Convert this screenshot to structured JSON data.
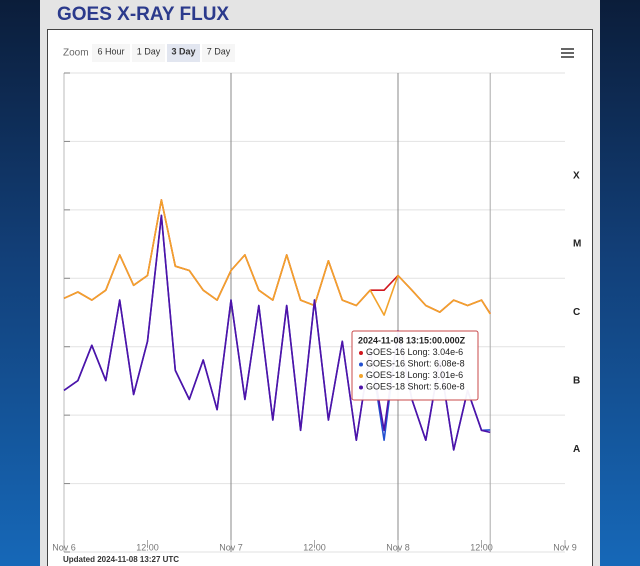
{
  "chart_data": {
    "type": "line",
    "title": "GOES X-RAY FLUX",
    "zoom": {
      "label": "Zoom",
      "buttons": [
        "6 Hour",
        "1 Day",
        "3 Day",
        "7 Day"
      ],
      "selected": 2
    },
    "updated": "Updated 2024-11-08 13:27 UTC",
    "log_y": true,
    "grid": true,
    "xlim": [
      "2024-11-06T00:00Z",
      "2024-11-09T00:00Z"
    ],
    "xticks": [
      {
        "value": "2024-11-06T00:00Z",
        "label": "Nov 6"
      },
      {
        "value": "2024-11-06T12:00Z",
        "label": "12:00"
      },
      {
        "value": "2024-11-07T00:00Z",
        "label": "Nov 7"
      },
      {
        "value": "2024-11-07T12:00Z",
        "label": "12:00"
      },
      {
        "value": "2024-11-08T00:00Z",
        "label": "Nov 8"
      },
      {
        "value": "2024-11-08T12:00Z",
        "label": "12:00"
      },
      {
        "value": "2024-11-09T00:00Z",
        "label": "Nov 9"
      }
    ],
    "xgrid": [
      "2024-11-07T00:00Z",
      "2024-11-08T00:00Z"
    ],
    "ylim": [
      1e-09,
      0.01
    ],
    "yticks": [
      1e-09,
      1e-08,
      1e-07,
      1e-06,
      1e-05,
      0.0001,
      0.001,
      0.01
    ],
    "class_labels": [
      {
        "label": "X",
        "value": 0.0001
      },
      {
        "label": "M",
        "value": 1e-05
      },
      {
        "label": "C",
        "value": 1e-06
      },
      {
        "label": "B",
        "value": 1e-07
      },
      {
        "label": "A",
        "value": 1e-08
      }
    ],
    "x": [
      "2024-11-06T00:00Z",
      "2024-11-06T02:00Z",
      "2024-11-06T04:00Z",
      "2024-11-06T06:00Z",
      "2024-11-06T08:00Z",
      "2024-11-06T10:00Z",
      "2024-11-06T12:00Z",
      "2024-11-06T14:00Z",
      "2024-11-06T16:00Z",
      "2024-11-06T18:00Z",
      "2024-11-06T20:00Z",
      "2024-11-06T22:00Z",
      "2024-11-07T00:00Z",
      "2024-11-07T02:00Z",
      "2024-11-07T04:00Z",
      "2024-11-07T06:00Z",
      "2024-11-07T08:00Z",
      "2024-11-07T10:00Z",
      "2024-11-07T12:00Z",
      "2024-11-07T14:00Z",
      "2024-11-07T16:00Z",
      "2024-11-07T18:00Z",
      "2024-11-07T20:00Z",
      "2024-11-07T22:00Z",
      "2024-11-08T00:00Z",
      "2024-11-08T02:00Z",
      "2024-11-08T04:00Z",
      "2024-11-08T06:00Z",
      "2024-11-08T08:00Z",
      "2024-11-08T10:00Z",
      "2024-11-08T12:00Z",
      "2024-11-08T13:15Z"
    ],
    "series": [
      {
        "name": "GOES-16 Long",
        "color": "#d0161e",
        "values": [
          5.1e-06,
          6.3e-06,
          4.8e-06,
          6.7e-06,
          2.2e-05,
          7.9e-06,
          1.1e-05,
          0.00014,
          1.5e-05,
          1.3e-05,
          6.7e-06,
          4.8e-06,
          1.3e-05,
          2.2e-05,
          6.7e-06,
          4.8e-06,
          2.2e-05,
          4.8e-06,
          4e-06,
          1.8e-05,
          4.8e-06,
          4e-06,
          6.7e-06,
          6.7e-06,
          1.1e-05,
          6.7e-06,
          4e-06,
          3.2e-06,
          4.8e-06,
          4e-06,
          4.8e-06,
          3.04e-06
        ]
      },
      {
        "name": "GOES-16 Short",
        "color": "#2350d0",
        "values": [
          2.3e-07,
          3.2e-07,
          1.05e-06,
          3.2e-07,
          4.8e-06,
          2e-07,
          1.2e-06,
          8.3e-05,
          4.5e-07,
          1.7e-07,
          6.4e-07,
          1.2e-07,
          4.8e-06,
          1.7e-07,
          4e-06,
          8.5e-08,
          4e-06,
          6e-08,
          4.8e-06,
          8.5e-08,
          1.2e-06,
          4.3e-08,
          8.9e-07,
          4.3e-08,
          1.7e-06,
          1.7e-07,
          4.3e-08,
          6.4e-07,
          3.1e-08,
          2.3e-07,
          6e-08,
          6.08e-08
        ]
      },
      {
        "name": "GOES-18 Long",
        "color": "#f2a32c",
        "values": [
          5.1e-06,
          6.3e-06,
          4.8e-06,
          6.7e-06,
          2.2e-05,
          7.9e-06,
          1.1e-05,
          0.00014,
          1.5e-05,
          1.3e-05,
          6.7e-06,
          4.8e-06,
          1.3e-05,
          2.2e-05,
          6.7e-06,
          4.8e-06,
          2.2e-05,
          4.8e-06,
          4e-06,
          1.8e-05,
          4.8e-06,
          4e-06,
          6.7e-06,
          2.9e-06,
          1.1e-05,
          6.7e-06,
          4e-06,
          3.2e-06,
          4.8e-06,
          4e-06,
          4.8e-06,
          3.01e-06
        ]
      },
      {
        "name": "GOES-18 Short",
        "color": "#4f12a8",
        "values": [
          2.3e-07,
          3.2e-07,
          1.05e-06,
          3.2e-07,
          4.8e-06,
          2e-07,
          1.2e-06,
          8.3e-05,
          4.5e-07,
          1.7e-07,
          6.4e-07,
          1.2e-07,
          4.8e-06,
          1.7e-07,
          4e-06,
          8.5e-08,
          4e-06,
          6e-08,
          4.8e-06,
          8.5e-08,
          1.2e-06,
          4.3e-08,
          8.9e-07,
          6e-08,
          1.7e-06,
          1.7e-07,
          4.3e-08,
          6.4e-07,
          3.1e-08,
          2.3e-07,
          6e-08,
          5.6e-08
        ]
      }
    ],
    "tooltip": {
      "x": "2024-11-08T13:15Z",
      "title": "2024-11-08 13:15:00.000Z",
      "value_labels": [
        "3.04e-6",
        "6.08e-8",
        "3.01e-6",
        "5.60e-8"
      ]
    }
  }
}
